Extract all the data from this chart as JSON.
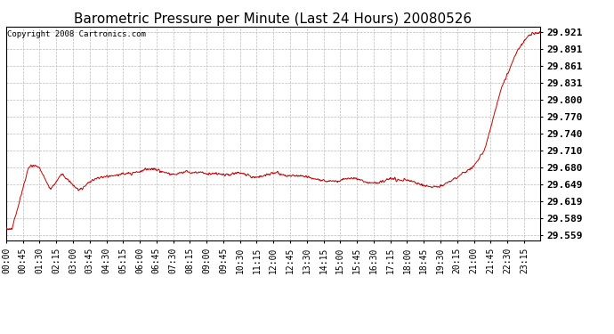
{
  "title": "Barometric Pressure per Minute (Last 24 Hours) 20080526",
  "copyright_text": "Copyright 2008 Cartronics.com",
  "background_color": "#ffffff",
  "plot_bg_color": "#ffffff",
  "line_color": "#cc0000",
  "grid_color": "#bbbbbb",
  "yticks": [
    29.559,
    29.589,
    29.619,
    29.649,
    29.68,
    29.71,
    29.74,
    29.77,
    29.8,
    29.831,
    29.861,
    29.891,
    29.921
  ],
  "ylim": [
    29.549,
    29.931
  ],
  "xtick_labels": [
    "00:00",
    "00:45",
    "01:30",
    "02:15",
    "03:00",
    "03:45",
    "04:30",
    "05:15",
    "06:00",
    "06:45",
    "07:30",
    "08:15",
    "09:00",
    "09:45",
    "10:30",
    "11:15",
    "12:00",
    "12:45",
    "13:30",
    "14:15",
    "15:00",
    "15:45",
    "16:30",
    "17:15",
    "18:00",
    "18:45",
    "19:30",
    "20:15",
    "21:00",
    "21:45",
    "22:30",
    "23:15"
  ],
  "title_fontsize": 11,
  "tick_fontsize": 7,
  "ytick_fontsize": 8,
  "copyright_fontsize": 6.5
}
